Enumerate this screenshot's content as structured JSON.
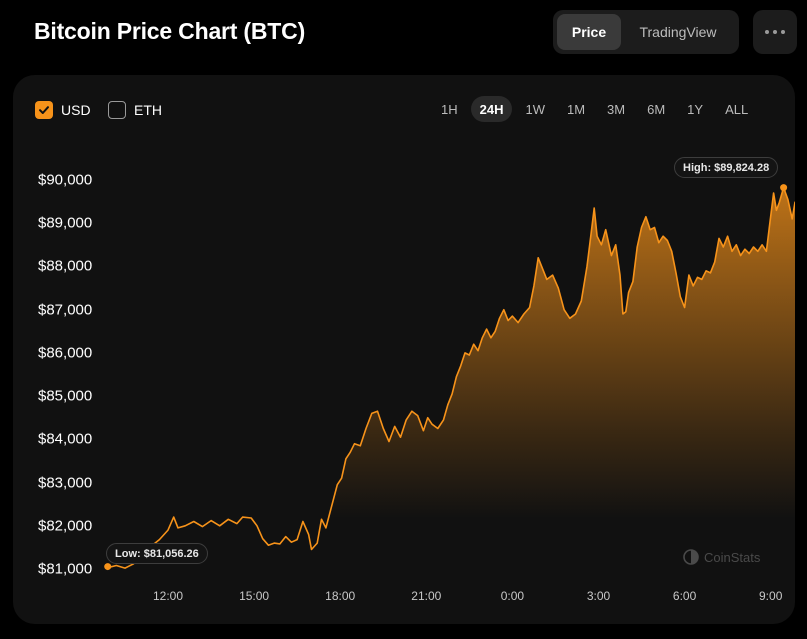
{
  "header": {
    "title": "Bitcoin Price Chart (BTC)"
  },
  "view_tabs": [
    {
      "label": "Price",
      "active": true
    },
    {
      "label": "TradingView",
      "active": false
    }
  ],
  "more_icon": "more-horizontal-icon",
  "currency_toggles": [
    {
      "label": "USD",
      "checked": true
    },
    {
      "label": "ETH",
      "checked": false
    }
  ],
  "range_tabs": [
    {
      "label": "1H",
      "active": false
    },
    {
      "label": "24H",
      "active": true
    },
    {
      "label": "1W",
      "active": false
    },
    {
      "label": "1M",
      "active": false
    },
    {
      "label": "3M",
      "active": false
    },
    {
      "label": "6M",
      "active": false
    },
    {
      "label": "1Y",
      "active": false
    },
    {
      "label": "ALL",
      "active": false
    }
  ],
  "watermark": "CoinStats",
  "colors": {
    "accent": "#f7931a",
    "background": "#000000",
    "card": "#111111"
  },
  "chart_data": {
    "type": "area",
    "title": "",
    "xlabel": "",
    "ylabel": "",
    "x_ticks": [
      "12:00",
      "15:00",
      "18:00",
      "21:00",
      "0:00",
      "3:00",
      "6:00",
      "9:00"
    ],
    "y_ticks": [
      "$90,000",
      "$89,000",
      "$88,000",
      "$87,000",
      "$86,000",
      "$85,000",
      "$84,000",
      "$83,000",
      "$82,000",
      "$81,000"
    ],
    "ylim": [
      81000,
      90000
    ],
    "xlim": [
      -2.1,
      21.0
    ],
    "x_unit": "hours from 12:00",
    "grid": false,
    "series": [
      {
        "values": [
          [
            -2.1,
            81030
          ],
          [
            -1.8,
            81080
          ],
          [
            -1.5,
            81020
          ],
          [
            -1.2,
            81120
          ],
          [
            -0.9,
            81380
          ],
          [
            -0.6,
            81520
          ],
          [
            -0.3,
            81680
          ],
          [
            0,
            81900
          ],
          [
            0.2,
            82200
          ],
          [
            0.35,
            81950
          ],
          [
            0.6,
            82000
          ],
          [
            0.9,
            82100
          ],
          [
            1.2,
            81980
          ],
          [
            1.5,
            82120
          ],
          [
            1.8,
            82000
          ],
          [
            2.1,
            82150
          ],
          [
            2.4,
            82050
          ],
          [
            2.6,
            82200
          ],
          [
            2.9,
            82180
          ],
          [
            3.1,
            82000
          ],
          [
            3.3,
            81700
          ],
          [
            3.5,
            81550
          ],
          [
            3.7,
            81600
          ],
          [
            3.9,
            81580
          ],
          [
            4.1,
            81750
          ],
          [
            4.3,
            81620
          ],
          [
            4.5,
            81680
          ],
          [
            4.7,
            82100
          ],
          [
            4.9,
            81800
          ],
          [
            5.0,
            81450
          ],
          [
            5.2,
            81600
          ],
          [
            5.35,
            82150
          ],
          [
            5.5,
            81950
          ],
          [
            5.7,
            82450
          ],
          [
            5.9,
            82950
          ],
          [
            6.05,
            83100
          ],
          [
            6.2,
            83550
          ],
          [
            6.35,
            83700
          ],
          [
            6.5,
            83900
          ],
          [
            6.7,
            83850
          ],
          [
            6.9,
            84250
          ],
          [
            7.1,
            84600
          ],
          [
            7.3,
            84650
          ],
          [
            7.5,
            84250
          ],
          [
            7.7,
            83950
          ],
          [
            7.9,
            84300
          ],
          [
            8.1,
            84050
          ],
          [
            8.3,
            84450
          ],
          [
            8.5,
            84650
          ],
          [
            8.7,
            84550
          ],
          [
            8.9,
            84200
          ],
          [
            9.05,
            84500
          ],
          [
            9.2,
            84350
          ],
          [
            9.4,
            84250
          ],
          [
            9.6,
            84450
          ],
          [
            9.75,
            84800
          ],
          [
            9.9,
            85050
          ],
          [
            10.05,
            85450
          ],
          [
            10.2,
            85700
          ],
          [
            10.35,
            86000
          ],
          [
            10.5,
            85950
          ],
          [
            10.65,
            86200
          ],
          [
            10.8,
            86050
          ],
          [
            10.95,
            86350
          ],
          [
            11.1,
            86550
          ],
          [
            11.25,
            86350
          ],
          [
            11.4,
            86500
          ],
          [
            11.55,
            86800
          ],
          [
            11.7,
            87000
          ],
          [
            11.85,
            86750
          ],
          [
            12.0,
            86850
          ],
          [
            12.2,
            86700
          ],
          [
            12.4,
            86900
          ],
          [
            12.6,
            87050
          ],
          [
            12.75,
            87550
          ],
          [
            12.9,
            88200
          ],
          [
            13.05,
            87950
          ],
          [
            13.2,
            87700
          ],
          [
            13.4,
            87800
          ],
          [
            13.6,
            87500
          ],
          [
            13.8,
            87000
          ],
          [
            14.0,
            86800
          ],
          [
            14.2,
            86900
          ],
          [
            14.4,
            87200
          ],
          [
            14.6,
            88000
          ],
          [
            14.75,
            88800
          ],
          [
            14.85,
            89350
          ],
          [
            14.95,
            88700
          ],
          [
            15.1,
            88500
          ],
          [
            15.25,
            88850
          ],
          [
            15.45,
            88250
          ],
          [
            15.6,
            88500
          ],
          [
            15.75,
            87800
          ],
          [
            15.85,
            86900
          ],
          [
            15.95,
            86950
          ],
          [
            16.05,
            87400
          ],
          [
            16.2,
            87650
          ],
          [
            16.35,
            88450
          ],
          [
            16.5,
            88900
          ],
          [
            16.65,
            89150
          ],
          [
            16.8,
            88850
          ],
          [
            16.95,
            88900
          ],
          [
            17.1,
            88550
          ],
          [
            17.25,
            88700
          ],
          [
            17.4,
            88600
          ],
          [
            17.55,
            88350
          ],
          [
            17.7,
            87850
          ],
          [
            17.85,
            87300
          ],
          [
            18.0,
            87050
          ],
          [
            18.15,
            87800
          ],
          [
            18.3,
            87550
          ],
          [
            18.45,
            87750
          ],
          [
            18.6,
            87700
          ],
          [
            18.75,
            87900
          ],
          [
            18.9,
            87850
          ],
          [
            19.05,
            88100
          ],
          [
            19.2,
            88650
          ],
          [
            19.35,
            88450
          ],
          [
            19.5,
            88700
          ],
          [
            19.65,
            88350
          ],
          [
            19.8,
            88500
          ],
          [
            19.95,
            88250
          ],
          [
            20.1,
            88400
          ],
          [
            20.25,
            88300
          ],
          [
            20.4,
            88450
          ],
          [
            20.55,
            88350
          ],
          [
            20.7,
            88500
          ],
          [
            20.85,
            88350
          ],
          [
            20.95,
            88900
          ],
          [
            21.1,
            89700
          ],
          [
            21.2,
            89300
          ],
          [
            21.3,
            89480
          ],
          [
            21.45,
            89824.28
          ],
          [
            21.6,
            89550
          ],
          [
            21.75,
            89100
          ],
          [
            21.85,
            89500
          ]
        ]
      }
    ],
    "high": {
      "label": "High: $89,824.28",
      "value": 89824.28,
      "x": 21.45
    },
    "low": {
      "label": "Low: $81,056.26",
      "value": 81056.26,
      "x": -2.1
    }
  }
}
